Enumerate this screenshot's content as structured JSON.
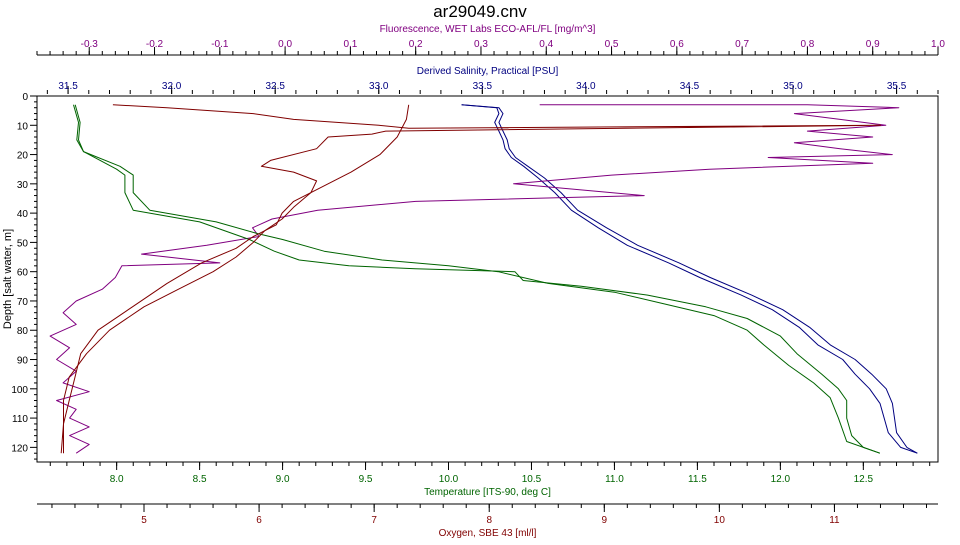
{
  "chart_data": {
    "type": "line",
    "title": "ar29049.cnv",
    "y_axis": {
      "label": "Depth [salt water, m]",
      "range": [
        0,
        125
      ],
      "ticks": [
        0,
        10,
        20,
        30,
        40,
        50,
        60,
        70,
        80,
        90,
        100,
        110,
        120
      ],
      "inverted": true
    },
    "x_axes": {
      "fluorescence": {
        "label": "Fluorescence, WET Labs ECO-AFL/FL [mg/m^3]",
        "position": "top",
        "color": "#800080",
        "range": [
          -0.38,
          1.0
        ],
        "ticks": [
          "-0.3",
          "-0.2",
          "-0.1",
          "0.0",
          "0.1",
          "0.2",
          "0.3",
          "0.4",
          "0.5",
          "0.6",
          "0.7",
          "0.8",
          "0.9",
          "1.0"
        ]
      },
      "salinity": {
        "label": "Derived Salinity, Practical [PSU]",
        "position": "top",
        "color": "#000080",
        "range": [
          31.35,
          35.7
        ],
        "ticks": [
          "31.5",
          "32.0",
          "32.5",
          "33.0",
          "33.5",
          "34.0",
          "34.5",
          "35.0",
          "35.5"
        ]
      },
      "temperature": {
        "label": "Temperature [ITS-90, deg C]",
        "position": "bottom",
        "color": "#006400",
        "range": [
          7.52,
          12.95
        ],
        "ticks": [
          "8.0",
          "8.5",
          "9.0",
          "9.5",
          "10.0",
          "10.5",
          "11.0",
          "11.5",
          "12.0",
          "12.5"
        ]
      },
      "oxygen": {
        "label": "Oxygen, SBE 43 [ml/l]",
        "position": "bottom",
        "color": "#800000",
        "range": [
          4.07,
          11.9
        ],
        "ticks": [
          "5",
          "6",
          "7",
          "8",
          "9",
          "10",
          "11"
        ]
      }
    },
    "series": [
      {
        "axis": "salinity",
        "color": "#000080",
        "points": [
          [
            33.4,
            3
          ],
          [
            33.58,
            4
          ],
          [
            33.6,
            6
          ],
          [
            33.58,
            9
          ],
          [
            33.6,
            12
          ],
          [
            33.62,
            15
          ],
          [
            33.63,
            18
          ],
          [
            33.66,
            21
          ],
          [
            33.72,
            24
          ],
          [
            33.8,
            28
          ],
          [
            33.88,
            33
          ],
          [
            33.96,
            39
          ],
          [
            34.1,
            45
          ],
          [
            34.25,
            51
          ],
          [
            34.45,
            57
          ],
          [
            34.6,
            62
          ],
          [
            34.8,
            68
          ],
          [
            34.95,
            73
          ],
          [
            35.08,
            79
          ],
          [
            35.18,
            85
          ],
          [
            35.3,
            90
          ],
          [
            35.38,
            95
          ],
          [
            35.45,
            100
          ],
          [
            35.48,
            105
          ],
          [
            35.5,
            115
          ],
          [
            35.55,
            120
          ],
          [
            35.6,
            122
          ]
        ]
      },
      {
        "axis": "salinity",
        "color": "#000080",
        "points": [
          [
            33.4,
            3
          ],
          [
            33.57,
            4
          ],
          [
            33.58,
            6
          ],
          [
            33.56,
            9
          ],
          [
            33.58,
            12
          ],
          [
            33.6,
            15
          ],
          [
            33.61,
            18
          ],
          [
            33.64,
            21
          ],
          [
            33.7,
            24
          ],
          [
            33.77,
            28
          ],
          [
            33.85,
            33
          ],
          [
            33.93,
            39
          ],
          [
            34.06,
            45
          ],
          [
            34.2,
            51
          ],
          [
            34.4,
            57
          ],
          [
            34.55,
            62
          ],
          [
            34.75,
            68
          ],
          [
            34.9,
            73
          ],
          [
            35.03,
            79
          ],
          [
            35.12,
            85
          ],
          [
            35.24,
            90
          ],
          [
            35.3,
            95
          ],
          [
            35.37,
            100
          ],
          [
            35.42,
            105
          ],
          [
            35.46,
            115
          ],
          [
            35.52,
            120
          ],
          [
            35.6,
            122
          ]
        ]
      },
      {
        "axis": "fluorescence",
        "color": "#800080",
        "points": [
          [
            0.39,
            3
          ],
          [
            0.8,
            3
          ],
          [
            0.94,
            4
          ],
          [
            0.78,
            6
          ],
          [
            0.85,
            8
          ],
          [
            0.92,
            10
          ],
          [
            0.8,
            12
          ],
          [
            0.9,
            14
          ],
          [
            0.78,
            16
          ],
          [
            0.85,
            18
          ],
          [
            0.93,
            20
          ],
          [
            0.74,
            21
          ],
          [
            0.9,
            23
          ],
          [
            0.65,
            25
          ],
          [
            0.5,
            27
          ],
          [
            0.35,
            30
          ],
          [
            0.55,
            34
          ],
          [
            0.2,
            36
          ],
          [
            0.05,
            39
          ],
          [
            -0.02,
            42
          ],
          [
            -0.05,
            45
          ],
          [
            -0.04,
            48
          ],
          [
            -0.12,
            51
          ],
          [
            -0.22,
            54
          ],
          [
            -0.1,
            57
          ],
          [
            -0.25,
            58
          ],
          [
            -0.26,
            62
          ],
          [
            -0.28,
            66
          ],
          [
            -0.32,
            70
          ],
          [
            -0.34,
            74
          ],
          [
            -0.32,
            78
          ],
          [
            -0.36,
            82
          ],
          [
            -0.33,
            86
          ],
          [
            -0.35,
            90
          ],
          [
            -0.32,
            94
          ],
          [
            -0.34,
            98
          ],
          [
            -0.3,
            101
          ],
          [
            -0.35,
            104
          ],
          [
            -0.32,
            107
          ],
          [
            -0.33,
            110
          ],
          [
            -0.3,
            113
          ],
          [
            -0.33,
            116
          ],
          [
            -0.3,
            119
          ],
          [
            -0.32,
            122
          ]
        ]
      },
      {
        "axis": "temperature",
        "color": "#006400",
        "points": [
          [
            7.75,
            3
          ],
          [
            7.78,
            9
          ],
          [
            7.77,
            15
          ],
          [
            7.8,
            19
          ],
          [
            8.0,
            25
          ],
          [
            8.05,
            27
          ],
          [
            8.05,
            33
          ],
          [
            8.1,
            39
          ],
          [
            8.5,
            43
          ],
          [
            8.7,
            47
          ],
          [
            8.8,
            49
          ],
          [
            8.95,
            53
          ],
          [
            9.1,
            56
          ],
          [
            9.4,
            58
          ],
          [
            9.8,
            59
          ],
          [
            10.4,
            60
          ],
          [
            10.45,
            63
          ],
          [
            10.8,
            65
          ],
          [
            11.2,
            68
          ],
          [
            11.55,
            72
          ],
          [
            11.8,
            76
          ],
          [
            12.0,
            82
          ],
          [
            12.1,
            88
          ],
          [
            12.25,
            95
          ],
          [
            12.35,
            100
          ],
          [
            12.4,
            104
          ],
          [
            12.4,
            110
          ],
          [
            12.43,
            116
          ],
          [
            12.5,
            120
          ],
          [
            12.6,
            122
          ]
        ]
      },
      {
        "axis": "temperature",
        "color": "#006400",
        "points": [
          [
            7.74,
            3
          ],
          [
            7.77,
            9
          ],
          [
            7.76,
            15
          ],
          [
            7.8,
            19
          ],
          [
            8.02,
            24
          ],
          [
            8.1,
            27
          ],
          [
            8.1,
            33
          ],
          [
            8.2,
            39
          ],
          [
            8.6,
            43
          ],
          [
            8.85,
            47
          ],
          [
            9.0,
            49
          ],
          [
            9.25,
            53
          ],
          [
            9.6,
            56
          ],
          [
            10.0,
            58
          ],
          [
            10.3,
            60
          ],
          [
            10.6,
            64
          ],
          [
            11.0,
            67
          ],
          [
            11.3,
            71
          ],
          [
            11.6,
            75
          ],
          [
            11.8,
            80
          ],
          [
            11.9,
            85
          ],
          [
            12.05,
            92
          ],
          [
            12.2,
            98
          ],
          [
            12.3,
            103
          ],
          [
            12.35,
            110
          ],
          [
            12.4,
            118
          ],
          [
            12.6,
            122
          ]
        ]
      },
      {
        "axis": "oxygen",
        "color": "#800000",
        "points": [
          [
            4.73,
            3
          ],
          [
            5.2,
            4
          ],
          [
            5.95,
            6
          ],
          [
            6.3,
            8
          ],
          [
            7.04,
            10
          ],
          [
            7.3,
            11
          ],
          [
            11.4,
            10
          ],
          [
            7.1,
            12
          ],
          [
            6.98,
            13
          ],
          [
            6.6,
            14
          ],
          [
            6.5,
            18
          ],
          [
            6.1,
            22
          ],
          [
            6.02,
            24
          ],
          [
            6.3,
            26
          ],
          [
            6.5,
            29
          ],
          [
            6.45,
            33
          ],
          [
            6.3,
            38
          ],
          [
            6.2,
            42
          ],
          [
            6.05,
            46
          ],
          [
            5.95,
            50
          ],
          [
            5.8,
            55
          ],
          [
            5.6,
            60
          ],
          [
            5.3,
            66
          ],
          [
            5.0,
            72
          ],
          [
            4.7,
            80
          ],
          [
            4.5,
            88
          ],
          [
            4.35,
            96
          ],
          [
            4.3,
            104
          ],
          [
            4.3,
            112
          ],
          [
            4.3,
            120
          ],
          [
            4.3,
            122
          ]
        ]
      },
      {
        "axis": "oxygen",
        "color": "#800000",
        "points": [
          [
            7.3,
            3
          ],
          [
            7.28,
            8
          ],
          [
            7.2,
            14
          ],
          [
            7.05,
            20
          ],
          [
            6.8,
            26
          ],
          [
            6.5,
            32
          ],
          [
            6.3,
            36
          ],
          [
            6.2,
            40
          ],
          [
            6.15,
            44
          ],
          [
            5.95,
            48
          ],
          [
            5.8,
            52
          ],
          [
            5.5,
            57
          ],
          [
            5.2,
            64
          ],
          [
            4.9,
            72
          ],
          [
            4.6,
            80
          ],
          [
            4.45,
            88
          ],
          [
            4.4,
            96
          ],
          [
            4.35,
            104
          ],
          [
            4.3,
            112
          ],
          [
            4.28,
            122
          ]
        ]
      }
    ]
  }
}
